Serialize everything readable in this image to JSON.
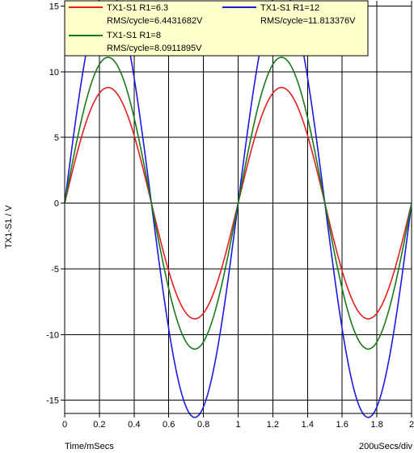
{
  "chart_data": {
    "type": "line",
    "xlabel": "Time/mSecs",
    "ylabel": "TX1-S1 / V",
    "x_scale_note": "200uSecs/div",
    "xlim": [
      0,
      2
    ],
    "ylim": [
      -16,
      15.4
    ],
    "x_ticks": [
      0,
      0.2,
      0.4,
      0.6,
      0.8,
      1,
      1.2,
      1.4,
      1.6,
      1.8,
      2
    ],
    "x_tick_labels": [
      "0",
      "0.2",
      "0.4",
      "0.6",
      "0.8",
      "1",
      "1.2",
      "1.4",
      "1.6",
      "1.8",
      "2"
    ],
    "y_ticks": [
      -15,
      -10,
      -5,
      0,
      5,
      10,
      15
    ],
    "y_tick_labels": [
      "-15",
      "-10",
      "-5",
      "0",
      "5",
      "10",
      "15"
    ],
    "grid": true,
    "legend_position": "top",
    "series": [
      {
        "name": "TX1-S1 R1=6.3",
        "rms_label": "RMS/cycle=6.4431682V",
        "color": "#e02020",
        "peak": 8.8,
        "frequency_khz": 1,
        "x": [
          0,
          0.25,
          0.5,
          0.75,
          1,
          1.25,
          1.5,
          1.75,
          2
        ],
        "y": [
          0,
          8.8,
          0,
          -8.8,
          0,
          8.8,
          0,
          -8.8,
          0
        ]
      },
      {
        "name": "TX1-S1 R1=12",
        "rms_label": "RMS/cycle=11.813376V",
        "color": "#1a1ae0",
        "peak": 16.3,
        "frequency_khz": 1,
        "x": [
          0,
          0.25,
          0.5,
          0.75,
          1,
          1.25,
          1.5,
          1.75,
          2
        ],
        "y": [
          0,
          16.3,
          0,
          -16.3,
          0,
          16.3,
          0,
          -16.3,
          0
        ]
      },
      {
        "name": "TX1-S1 R1=8",
        "rms_label": "RMS/cycle=8.0911895V",
        "color": "#1a7a1a",
        "peak": 11.1,
        "frequency_khz": 1,
        "x": [
          0,
          0.25,
          0.5,
          0.75,
          1,
          1.25,
          1.5,
          1.75,
          2
        ],
        "y": [
          0,
          11.1,
          0,
          -11.1,
          0,
          11.1,
          0,
          -11.1,
          0
        ]
      }
    ]
  }
}
